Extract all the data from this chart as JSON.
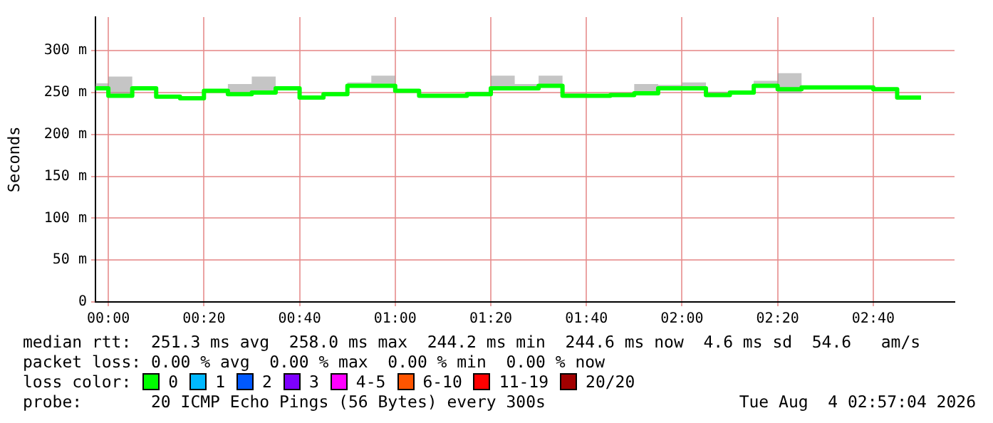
{
  "chart_data": {
    "type": "step",
    "ylabel": "Seconds",
    "legend_title": "loss color:",
    "legend": "bottom",
    "grid": true,
    "marker": "none",
    "x": [
      -0.045,
      0,
      0.0833,
      0.1667,
      0.25,
      0.3333,
      0.4167,
      0.5,
      0.5833,
      0.6667,
      0.75,
      0.8333,
      0.9167,
      1,
      1.0833,
      1.1667,
      1.25,
      1.3333,
      1.4167,
      1.5,
      1.5833,
      1.6667,
      1.75,
      1.8333,
      1.9167,
      2,
      2.0833,
      2.1667,
      2.25,
      2.3333,
      2.4167,
      2.5,
      2.5833,
      2.6667,
      2.75,
      2.8333
    ],
    "xlim": [
      -0.045,
      2.95
    ],
    "xticks": [
      {
        "value": 0,
        "label": "00:00"
      },
      {
        "value": 0.3333,
        "label": "00:20"
      },
      {
        "value": 0.6667,
        "label": "00:40"
      },
      {
        "value": 1,
        "label": "01:00"
      },
      {
        "value": 1.3333,
        "label": "01:20"
      },
      {
        "value": 1.6667,
        "label": "01:40"
      },
      {
        "value": 2,
        "label": "02:00"
      },
      {
        "value": 2.3333,
        "label": "02:20"
      },
      {
        "value": 2.6667,
        "label": "02:40"
      }
    ],
    "ylim": [
      0,
      340
    ],
    "yticks": [
      0,
      {
        "value": 50,
        "label": "50 m"
      },
      {
        "value": 100,
        "label": "100 m"
      },
      {
        "value": 150,
        "label": "150 m"
      },
      {
        "value": 200,
        "label": "200 m"
      },
      {
        "value": 250,
        "label": "250 m"
      },
      {
        "value": 300,
        "label": "300 m"
      }
    ],
    "series": [
      {
        "name": "0",
        "color": "#00ff00",
        "values": [
          255,
          246,
          255,
          245,
          243,
          252,
          248,
          250,
          255,
          244,
          248,
          258,
          258,
          252,
          246,
          246,
          248,
          255,
          255,
          258,
          246,
          246,
          247,
          249,
          255,
          255,
          247,
          250,
          258,
          254,
          256,
          256,
          256,
          254,
          244,
          244
        ],
        "lower": [
          255,
          246,
          255,
          245,
          243,
          252,
          248,
          250,
          255,
          244,
          248,
          258,
          258,
          252,
          246,
          246,
          248,
          255,
          255,
          258,
          246,
          246,
          247,
          249,
          255,
          255,
          247,
          250,
          258,
          249,
          256,
          256,
          256,
          254,
          244,
          244
        ],
        "upper": [
          261,
          269,
          255,
          245,
          243,
          252,
          260,
          269,
          255,
          244,
          248,
          262,
          270,
          252,
          246,
          246,
          251,
          270,
          260,
          270,
          249,
          246,
          250,
          260,
          259,
          262,
          251,
          250,
          264,
          273,
          256,
          256,
          256,
          254,
          244,
          244
        ]
      },
      {
        "name": "1",
        "color": "#00b8ff",
        "values": [
          null,
          null,
          null,
          null,
          null,
          null,
          null,
          null,
          null,
          null,
          null,
          null,
          null,
          null,
          null,
          null,
          null,
          null,
          null,
          null,
          null,
          null,
          null,
          null,
          null,
          null,
          null,
          null,
          null,
          null,
          null,
          null,
          null,
          null,
          null,
          null
        ]
      },
      {
        "name": "2",
        "color": "#0059ff",
        "values": [
          null,
          null,
          null,
          null,
          null,
          null,
          null,
          null,
          null,
          null,
          null,
          null,
          null,
          null,
          null,
          null,
          null,
          null,
          null,
          null,
          null,
          null,
          null,
          null,
          null,
          null,
          null,
          null,
          null,
          null,
          null,
          null,
          null,
          null,
          null,
          null
        ]
      },
      {
        "name": "3",
        "color": "#7e00ff",
        "values": [
          null,
          null,
          null,
          null,
          null,
          null,
          null,
          null,
          null,
          null,
          null,
          null,
          null,
          null,
          null,
          null,
          null,
          null,
          null,
          null,
          null,
          null,
          null,
          null,
          null,
          null,
          null,
          null,
          null,
          null,
          null,
          null,
          null,
          null,
          null,
          null
        ]
      },
      {
        "name": "4-5",
        "color": "#ff00ff",
        "values": [
          null,
          null,
          null,
          null,
          null,
          null,
          null,
          null,
          null,
          null,
          null,
          null,
          null,
          null,
          null,
          null,
          null,
          null,
          null,
          null,
          null,
          null,
          null,
          null,
          null,
          null,
          null,
          null,
          null,
          null,
          null,
          null,
          null,
          null,
          null,
          null
        ]
      },
      {
        "name": "6-10",
        "color": "#ff5500",
        "values": [
          null,
          null,
          null,
          null,
          null,
          null,
          null,
          null,
          null,
          null,
          null,
          null,
          null,
          null,
          null,
          null,
          null,
          null,
          null,
          null,
          null,
          null,
          null,
          null,
          null,
          null,
          null,
          null,
          null,
          null,
          null,
          null,
          null,
          null,
          null,
          null
        ]
      },
      {
        "name": "11-19",
        "color": "#ff0000",
        "values": [
          null,
          null,
          null,
          null,
          null,
          null,
          null,
          null,
          null,
          null,
          null,
          null,
          null,
          null,
          null,
          null,
          null,
          null,
          null,
          null,
          null,
          null,
          null,
          null,
          null,
          null,
          null,
          null,
          null,
          null,
          null,
          null,
          null,
          null,
          null,
          null
        ]
      },
      {
        "name": "20/20",
        "color": "#a10000",
        "values": [
          null,
          null,
          null,
          null,
          null,
          null,
          null,
          null,
          null,
          null,
          null,
          null,
          null,
          null,
          null,
          null,
          null,
          null,
          null,
          null,
          null,
          null,
          null,
          null,
          null,
          null,
          null,
          null,
          null,
          null,
          null,
          null,
          null,
          null,
          null,
          null
        ]
      }
    ],
    "annotations": [
      "median rtt:  251.3 ms avg  258.0 ms max  244.2 ms min  244.6 ms now  4.6 ms sd  54.6   am/s",
      "packet loss: 0.00 % avg  0.00 % max  0.00 % min  0.00 % now",
      "probe:       20 ICMP Echo Pings (56 Bytes) every 300s",
      "Tue Aug  4 02:57:04 2026"
    ]
  }
}
